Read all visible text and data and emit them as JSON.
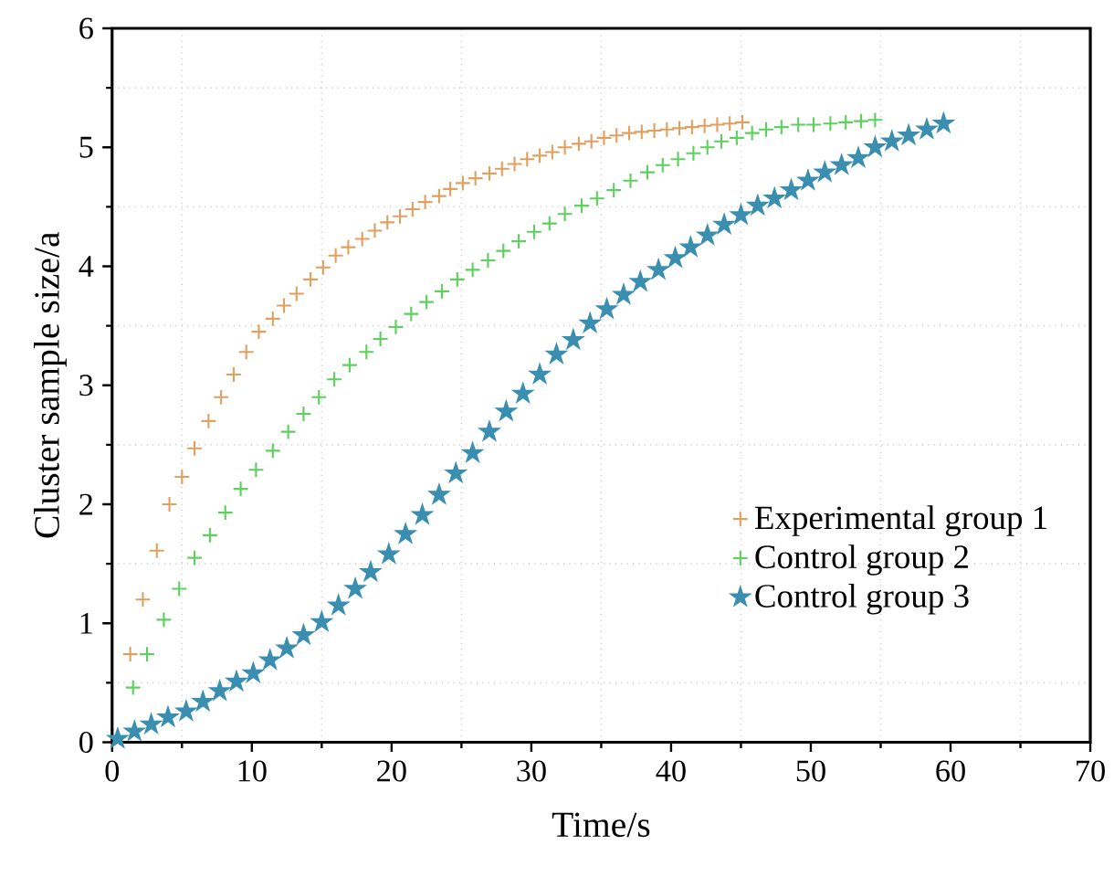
{
  "chart_data": {
    "type": "scatter",
    "xlabel": "Time/s",
    "ylabel": "Cluster sample size/a",
    "xlim": [
      0,
      70
    ],
    "ylim": [
      0,
      6
    ],
    "xticks": [
      0,
      10,
      20,
      30,
      40,
      50,
      60,
      70
    ],
    "yticks": [
      0,
      1,
      2,
      3,
      4,
      5,
      6
    ],
    "grid": true,
    "legend": "bottom right",
    "series": [
      {
        "name": "Experimental group 1",
        "color": "#e0a060",
        "marker": "cross",
        "x": [
          1.3,
          2.2,
          3.2,
          4.1,
          5.0,
          5.9,
          6.9,
          7.8,
          8.7,
          9.6,
          10.5,
          11.5,
          12.3,
          13.2,
          14.2,
          15.1,
          16.0,
          16.9,
          17.9,
          18.8,
          19.7,
          20.6,
          21.5,
          22.4,
          23.4,
          24.2,
          25.1,
          26.0,
          27.0,
          27.9,
          28.8,
          29.7,
          30.6,
          31.5,
          32.4,
          33.4,
          34.3,
          35.2,
          36.1,
          37.0,
          37.9,
          38.8,
          39.7,
          40.6,
          41.5,
          42.4,
          43.3,
          44.2,
          45.1
        ],
        "values": [
          0.74,
          1.2,
          1.61,
          2.0,
          2.23,
          2.47,
          2.7,
          2.9,
          3.09,
          3.28,
          3.45,
          3.56,
          3.67,
          3.77,
          3.89,
          3.99,
          4.09,
          4.16,
          4.23,
          4.3,
          4.37,
          4.42,
          4.48,
          4.54,
          4.59,
          4.65,
          4.7,
          4.74,
          4.78,
          4.82,
          4.86,
          4.9,
          4.93,
          4.96,
          5.0,
          5.03,
          5.05,
          5.08,
          5.1,
          5.12,
          5.13,
          5.14,
          5.15,
          5.16,
          5.17,
          5.18,
          5.19,
          5.2,
          5.21
        ]
      },
      {
        "name": "Control group 2",
        "color": "#5dd05d",
        "marker": "cross",
        "x": [
          1.5,
          2.5,
          3.7,
          4.8,
          5.9,
          7.0,
          8.1,
          9.2,
          10.3,
          11.5,
          12.6,
          13.7,
          14.8,
          15.9,
          17.0,
          18.2,
          19.2,
          20.3,
          21.4,
          22.5,
          23.6,
          24.7,
          25.8,
          26.9,
          28.0,
          29.1,
          30.2,
          31.3,
          32.4,
          33.6,
          34.7,
          35.9,
          37.1,
          38.3,
          39.4,
          40.5,
          41.6,
          42.6,
          43.6,
          44.7,
          45.8,
          46.8,
          47.9,
          49.1,
          50.2,
          51.4,
          52.5,
          53.6,
          54.6
        ],
        "values": [
          0.46,
          0.74,
          1.03,
          1.29,
          1.55,
          1.74,
          1.93,
          2.13,
          2.29,
          2.45,
          2.61,
          2.76,
          2.9,
          3.05,
          3.17,
          3.28,
          3.39,
          3.49,
          3.6,
          3.7,
          3.79,
          3.89,
          3.97,
          4.05,
          4.13,
          4.21,
          4.29,
          4.36,
          4.44,
          4.51,
          4.57,
          4.64,
          4.72,
          4.79,
          4.85,
          4.9,
          4.95,
          5.0,
          5.05,
          5.08,
          5.12,
          5.15,
          5.17,
          5.19,
          5.19,
          5.2,
          5.21,
          5.22,
          5.23
        ]
      },
      {
        "name": "Control group 3",
        "color": "#3a8fb0",
        "marker": "star",
        "x": [
          0.4,
          1.6,
          2.8,
          4.0,
          5.3,
          6.5,
          7.7,
          8.9,
          10.1,
          11.3,
          12.5,
          13.7,
          15.0,
          16.2,
          17.4,
          18.5,
          19.8,
          21.0,
          22.2,
          23.4,
          24.6,
          25.8,
          27.0,
          28.2,
          29.4,
          30.6,
          31.8,
          33.0,
          34.2,
          35.4,
          36.6,
          37.8,
          39.1,
          40.3,
          41.4,
          42.6,
          43.8,
          45.0,
          46.2,
          47.4,
          48.6,
          49.8,
          51.0,
          52.2,
          53.4,
          54.6,
          55.8,
          57.0,
          58.3,
          59.5
        ],
        "values": [
          0.03,
          0.09,
          0.15,
          0.21,
          0.26,
          0.34,
          0.43,
          0.51,
          0.58,
          0.69,
          0.79,
          0.9,
          1.01,
          1.15,
          1.29,
          1.43,
          1.58,
          1.75,
          1.91,
          2.08,
          2.26,
          2.43,
          2.61,
          2.78,
          2.93,
          3.09,
          3.26,
          3.38,
          3.52,
          3.64,
          3.76,
          3.87,
          3.97,
          4.07,
          4.16,
          4.26,
          4.35,
          4.43,
          4.51,
          4.57,
          4.64,
          4.72,
          4.79,
          4.85,
          4.91,
          5.0,
          5.05,
          5.1,
          5.15,
          5.2
        ]
      }
    ]
  }
}
